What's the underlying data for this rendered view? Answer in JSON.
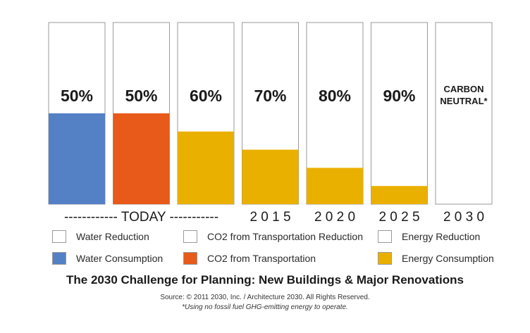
{
  "chart_data": {
    "type": "bar",
    "title": "The 2030 Challenge for Planning: New Buildings & Major Renovations",
    "subtitle": "",
    "xlabel": "",
    "ylabel": "",
    "ylim": [
      0,
      100
    ],
    "grid": false,
    "legend_position": "bottom",
    "bars": [
      {
        "label": "50%",
        "reduction": 50,
        "consumption": 50,
        "color": "#5480c6",
        "kind": "water"
      },
      {
        "label": "50%",
        "reduction": 50,
        "consumption": 50,
        "color": "#e85a1a",
        "kind": "co2"
      },
      {
        "label": "60%",
        "reduction": 60,
        "consumption": 40,
        "color": "#eab000",
        "kind": "energy"
      },
      {
        "label": "70%",
        "reduction": 70,
        "consumption": 30,
        "color": "#eab000",
        "kind": "energy"
      },
      {
        "label": "80%",
        "reduction": 80,
        "consumption": 20,
        "color": "#eab000",
        "kind": "energy"
      },
      {
        "label": "90%",
        "reduction": 90,
        "consumption": 10,
        "color": "#eab000",
        "kind": "energy"
      },
      {
        "label": "CARBON NEUTRAL*",
        "reduction": 100,
        "consumption": 0,
        "color": "#eab000",
        "kind": "energy"
      }
    ],
    "x_labels": [
      {
        "text": "------------ TODAY -----------",
        "span_start": 0,
        "span_end": 2
      },
      {
        "text": "2 0 1 5",
        "span_start": 3,
        "span_end": 3
      },
      {
        "text": "2 0 2 0",
        "span_start": 4,
        "span_end": 4
      },
      {
        "text": "2 0 2 5",
        "span_start": 5,
        "span_end": 5
      },
      {
        "text": "2 0 3 0",
        "span_start": 6,
        "span_end": 6
      }
    ],
    "legend": [
      {
        "label": "Water Reduction",
        "color": "#ffffff"
      },
      {
        "label": "CO2 from Transportation Reduction",
        "color": "#ffffff"
      },
      {
        "label": "Energy Reduction",
        "color": "#ffffff"
      },
      {
        "label": "Water Consumption",
        "color": "#5480c6"
      },
      {
        "label": "CO2 from Transportation",
        "color": "#e85a1a"
      },
      {
        "label": "Energy Consumption",
        "color": "#eab000"
      }
    ],
    "source": "Source: © 2011 2030, Inc. / Architecture 2030. All Rights Reserved.",
    "footnote": "*Using no fossil fuel GHG-emitting energy to operate."
  }
}
